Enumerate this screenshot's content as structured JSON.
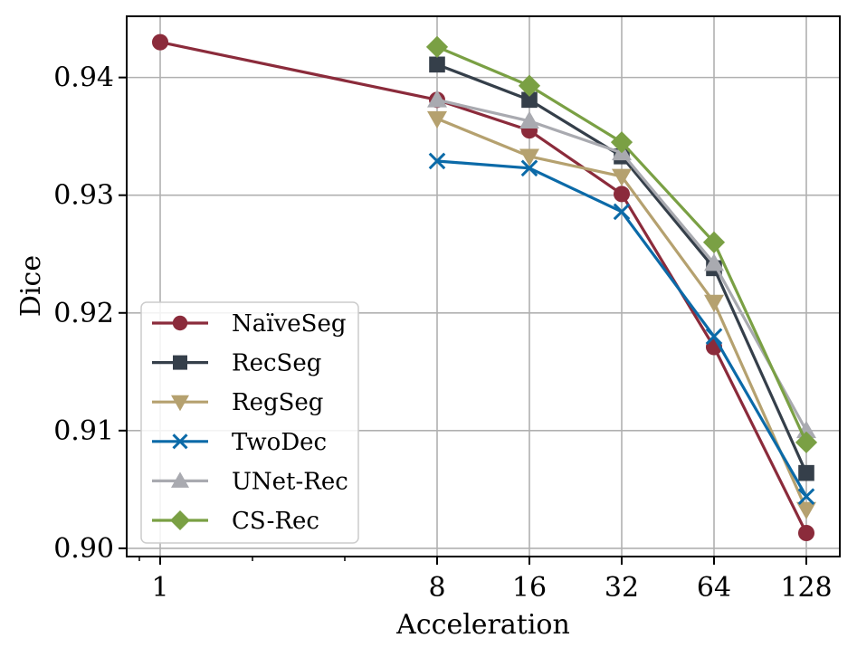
{
  "chart_data": {
    "type": "line",
    "title": "",
    "xlabel": "Acceleration",
    "ylabel": "Dice",
    "x_scale": "log2",
    "x": [
      1,
      8,
      16,
      32,
      64,
      128
    ],
    "x_tick_labels": [
      "1",
      "8",
      "16",
      "32",
      "64",
      "128"
    ],
    "y_ticks": [
      0.9,
      0.91,
      0.92,
      0.93,
      0.94
    ],
    "y_tick_labels": [
      "0.90",
      "0.91",
      "0.92",
      "0.93",
      "0.94"
    ],
    "ylim": [
      0.8993,
      0.9452
    ],
    "grid": true,
    "legend_position": "lower-left",
    "series": [
      {
        "name": "NaïveSeg",
        "color": "#8b2b3b",
        "marker": "circle",
        "x": [
          1,
          8,
          16,
          32,
          64,
          128
        ],
        "values": [
          0.943,
          0.9381,
          0.9355,
          0.9301,
          0.9171,
          0.9013
        ]
      },
      {
        "name": "RecSeg",
        "color": "#353f4a",
        "marker": "square",
        "x": [
          8,
          16,
          32,
          64,
          128
        ],
        "values": [
          0.9411,
          0.9381,
          0.9333,
          0.9238,
          0.9064
        ]
      },
      {
        "name": "RegSeg",
        "color": "#b5a16f",
        "marker": "triangle-down",
        "x": [
          8,
          16,
          32,
          64,
          128
        ],
        "values": [
          0.9365,
          0.9333,
          0.9316,
          0.9209,
          0.9033
        ]
      },
      {
        "name": "TwoDec",
        "color": "#0b6aa8",
        "marker": "x",
        "x": [
          8,
          16,
          32,
          64,
          128
        ],
        "values": [
          0.9329,
          0.9323,
          0.9286,
          0.918,
          0.9044
        ]
      },
      {
        "name": "UNet-Rec",
        "color": "#a9aab0",
        "marker": "triangle-up",
        "x": [
          8,
          16,
          32,
          64,
          128
        ],
        "values": [
          0.9381,
          0.9363,
          0.9336,
          0.9242,
          0.91
        ]
      },
      {
        "name": "CS-Rec",
        "color": "#7aa044",
        "marker": "diamond",
        "x": [
          8,
          16,
          32,
          64,
          128
        ],
        "values": [
          0.9426,
          0.9393,
          0.9345,
          0.926,
          0.909
        ]
      }
    ]
  }
}
